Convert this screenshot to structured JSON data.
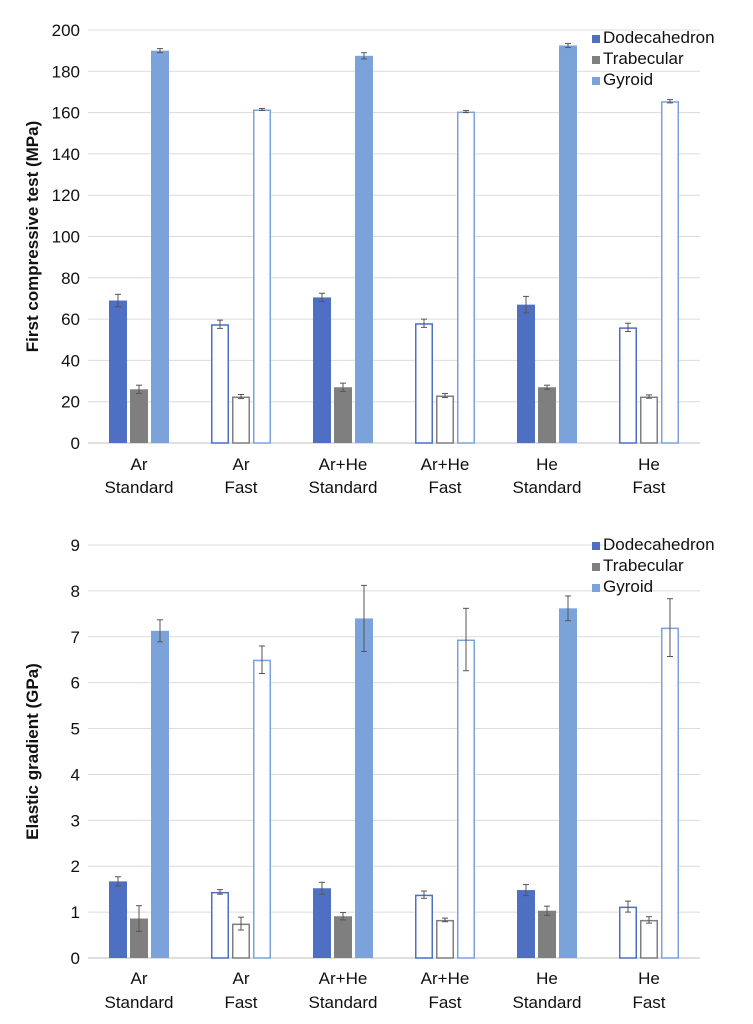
{
  "colors": {
    "dodecahedron": "#4f6fc2",
    "trabecular": "#7f7f7f",
    "gyroid": "#7ba3da",
    "grid": "#dcdcdc",
    "error": "#555555"
  },
  "chart_data": [
    {
      "type": "bar",
      "title": "",
      "xlabel": "",
      "ylabel": "First compressive test (MPa)",
      "ylim": [
        0,
        200
      ],
      "yticks": [
        "0",
        "20",
        "40",
        "60",
        "80",
        "100",
        "120",
        "140",
        "160",
        "180",
        "200"
      ],
      "grid": true,
      "legend_position": "top-right",
      "categories": [
        {
          "line1": "Ar",
          "line2": "Standard",
          "style": "filled"
        },
        {
          "line1": "Ar",
          "line2": "Fast",
          "style": "outline"
        },
        {
          "line1": "Ar+He",
          "line2": "Standard",
          "style": "filled"
        },
        {
          "line1": "Ar+He",
          "line2": "Fast",
          "style": "outline"
        },
        {
          "line1": "He",
          "line2": "Standard",
          "style": "filled"
        },
        {
          "line1": "He",
          "line2": "Fast",
          "style": "outline"
        }
      ],
      "series": [
        {
          "name": "Dodecahedron",
          "values": [
            69,
            57.5,
            70.5,
            58,
            67,
            56
          ],
          "errors": [
            3,
            2,
            2,
            2,
            4,
            2
          ]
        },
        {
          "name": "Trabecular",
          "values": [
            26,
            22.5,
            27,
            23,
            27,
            22.5
          ],
          "errors": [
            2,
            1,
            2,
            1,
            1,
            0.8
          ]
        },
        {
          "name": "Gyroid",
          "values": [
            190,
            161.5,
            187.5,
            160.5,
            192.5,
            165.5
          ],
          "errors": [
            1,
            0.5,
            1.5,
            0.5,
            1,
            0.8
          ]
        }
      ]
    },
    {
      "type": "bar",
      "title": "",
      "xlabel": "",
      "ylabel": "Elastic gradient (GPa)",
      "ylim": [
        0,
        9
      ],
      "yticks": [
        "0",
        "1",
        "2",
        "3",
        "4",
        "5",
        "6",
        "7",
        "8",
        "9"
      ],
      "grid": true,
      "legend_position": "top-right",
      "categories": [
        {
          "line1": "Ar",
          "line2": "Standard",
          "style": "filled"
        },
        {
          "line1": "Ar",
          "line2": "Fast",
          "style": "outline"
        },
        {
          "line1": "Ar+He",
          "line2": "Standard",
          "style": "filled"
        },
        {
          "line1": "Ar+He",
          "line2": "Fast",
          "style": "outline"
        },
        {
          "line1": "He",
          "line2": "Standard",
          "style": "filled"
        },
        {
          "line1": "He",
          "line2": "Fast",
          "style": "outline"
        }
      ],
      "series": [
        {
          "name": "Dodecahedron",
          "values": [
            1.67,
            1.44,
            1.52,
            1.38,
            1.48,
            1.12
          ],
          "errors": [
            0.1,
            0.05,
            0.13,
            0.08,
            0.12,
            0.12
          ]
        },
        {
          "name": "Trabecular",
          "values": [
            0.86,
            0.75,
            0.91,
            0.83,
            1.03,
            0.83
          ],
          "errors": [
            0.28,
            0.14,
            0.08,
            0.04,
            0.1,
            0.07
          ]
        },
        {
          "name": "Gyroid",
          "values": [
            7.13,
            6.5,
            7.4,
            6.94,
            7.62,
            7.2
          ],
          "errors": [
            0.24,
            0.3,
            0.72,
            0.68,
            0.27,
            0.63
          ]
        }
      ]
    }
  ]
}
